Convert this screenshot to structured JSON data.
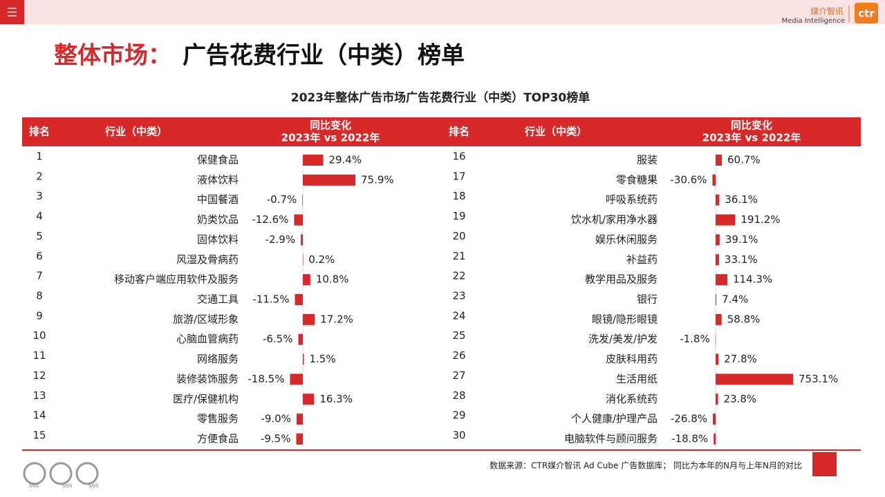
{
  "header": {
    "brand_cn": "媒介智讯",
    "brand_en": "Media Intelligence",
    "logo": "ctr"
  },
  "title_red": "整体市场：",
  "title_black": "广告花费行业（中类）榜单",
  "subtitle": "2023年整体广告市场广告花费行业（中类）TOP30榜单",
  "chart_data": [
    {
      "type": "bar",
      "color": "#d7282a",
      "rank_header": "排名",
      "category_header": "行业（中类）",
      "change_header": [
        "同比变化",
        "2023年 vs 2022年"
      ],
      "ranks": [
        1,
        2,
        3,
        4,
        5,
        6,
        7,
        8,
        9,
        10,
        11,
        12,
        13,
        14,
        15
      ],
      "categories": [
        "保健食品",
        "液体饮料",
        "中国餐酒",
        "奶类饮品",
        "固体饮料",
        "风湿及骨病药",
        "移动客户端应用软件及服务",
        "交通工具",
        "旅游/区域形象",
        "心脑血管病药",
        "网络服务",
        "装修装饰服务",
        "医疗/保健机构",
        "零售服务",
        "方便食品"
      ],
      "values": [
        29.4,
        75.9,
        -0.7,
        -12.6,
        -2.9,
        0.2,
        10.8,
        -11.5,
        17.2,
        -6.5,
        1.5,
        -18.5,
        16.3,
        -9.0,
        -9.5
      ],
      "value_labels": [
        "29.4%",
        "75.9%",
        "-0.7%",
        "-12.6%",
        "-2.9%",
        "0.2%",
        "10.8%",
        "-11.5%",
        "17.2%",
        "-6.5%",
        "1.5%",
        "-18.5%",
        "16.3%",
        "-9.0%",
        "-9.5%"
      ]
    },
    {
      "type": "bar",
      "color": "#d7282a",
      "rank_header": "排名",
      "category_header": "行业（中类）",
      "change_header": [
        "同比变化",
        "2023年 vs 2022年"
      ],
      "ranks": [
        16,
        17,
        18,
        19,
        20,
        21,
        22,
        23,
        24,
        25,
        26,
        27,
        28,
        29,
        30
      ],
      "categories": [
        "服装",
        "零食糖果",
        "呼吸系统药",
        "饮水机/家用净水器",
        "娱乐休闲服务",
        "补益药",
        "教学用品及服务",
        "银行",
        "眼镜/隐形眼镜",
        "洗发/美发/护发",
        "皮肤科用药",
        "生活用纸",
        "消化系统药",
        "个人健康/护理产品",
        "电脑软件与顾问服务"
      ],
      "values": [
        60.7,
        -30.6,
        36.1,
        191.2,
        39.1,
        33.1,
        114.3,
        7.4,
        58.8,
        -1.8,
        27.8,
        753.1,
        23.8,
        -26.8,
        -18.8
      ],
      "value_labels": [
        "60.7%",
        "-30.6%",
        "36.1%",
        "191.2%",
        "39.1%",
        "33.1%",
        "114.3%",
        "7.4%",
        "58.8%",
        "-1.8%",
        "27.8%",
        "753.1%",
        "23.8%",
        "-26.8%",
        "-18.8%"
      ]
    }
  ],
  "footer": {
    "source": "数据来源：CTR媒介智讯 Ad Cube 广告数据库； 同比为本年的N月与上年N月的对比",
    "sgs": "SGS"
  }
}
